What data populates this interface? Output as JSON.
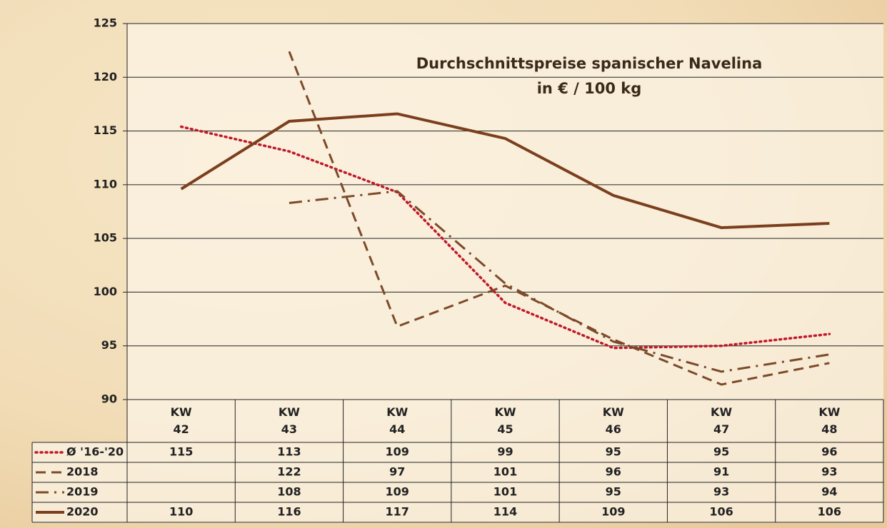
{
  "chart_data": {
    "type": "line",
    "title": "Durchschnittspreise spanischer Navelina",
    "subtitle": "in € / 100 kg",
    "categories": [
      "KW\n42",
      "KW\n43",
      "KW\n44",
      "KW\n45",
      "KW\n46",
      "KW\n47",
      "KW\n48"
    ],
    "series": [
      {
        "name": "Ø '16-'20",
        "color": "#c0182a",
        "style": "dotted",
        "values": [
          115.4,
          113.1,
          109.3,
          99,
          94.8,
          95,
          96.1
        ],
        "value_labels": [
          "115",
          "113",
          "109",
          "99",
          "95",
          "95",
          "96"
        ]
      },
      {
        "name": "2018",
        "color": "#7b4a2a",
        "style": "dashed",
        "values": [
          null,
          122.4,
          96.8,
          100.6,
          95.6,
          91.4,
          93.4
        ],
        "value_labels": [
          null,
          "122",
          "97",
          "101",
          "96",
          "91",
          "93"
        ]
      },
      {
        "name": "2019",
        "color": "#7b4a2a",
        "style": "dashdot",
        "values": [
          null,
          108.3,
          109.4,
          100.8,
          95.4,
          92.6,
          94.2
        ],
        "value_labels": [
          null,
          "108",
          "109",
          "101",
          "95",
          "93",
          "94"
        ]
      },
      {
        "name": "2020",
        "color": "#7b3f1e",
        "style": "solid",
        "values": [
          109.6,
          115.9,
          116.6,
          114.3,
          109,
          106,
          106.4
        ],
        "value_labels": [
          "110",
          "116",
          "117",
          "114",
          "109",
          "106",
          "106"
        ]
      }
    ],
    "ylim": [
      90,
      125
    ],
    "yticks": [
      90,
      95,
      100,
      105,
      110,
      115,
      120,
      125
    ],
    "grid": true
  }
}
